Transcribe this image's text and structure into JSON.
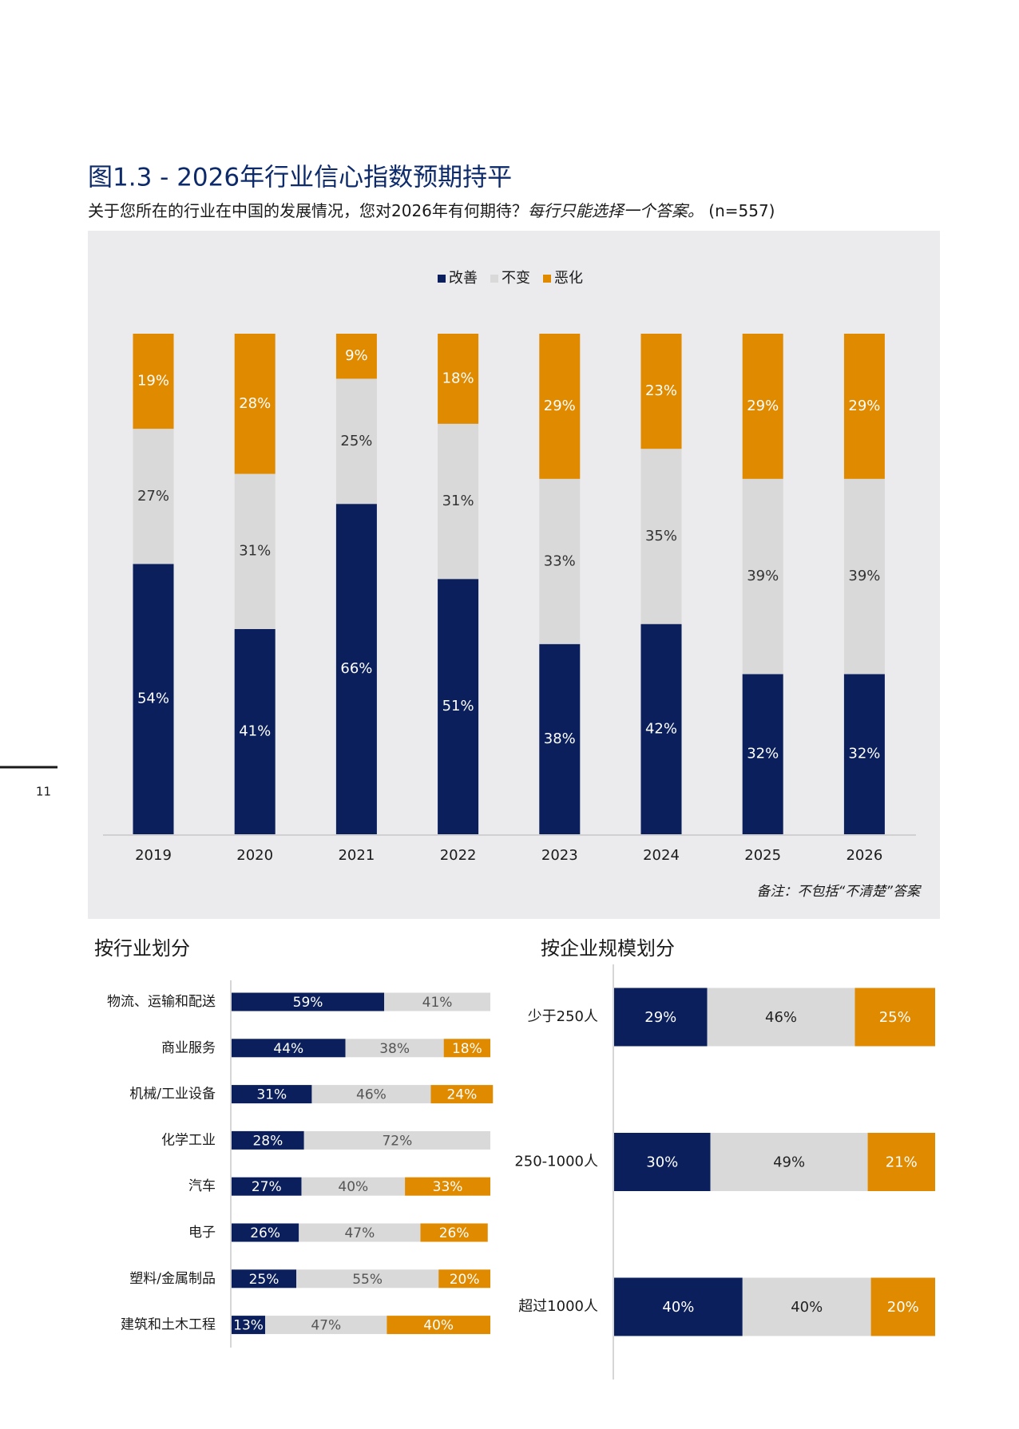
{
  "page_number": "11",
  "chart_data": [
    {
      "type": "bar",
      "title": "图1.3 - 2026年行业信心指数预期持平",
      "subtitle": "关于您所在的行业在中国的发展情况，您对2026年有何期待？",
      "subtitle_italic": "每行只能选择一个答案。",
      "subtitle_n": " (n=557)",
      "note": "备注：不包括“不清楚”答案",
      "legend": "top",
      "categories": [
        "2019",
        "2020",
        "2021",
        "2022",
        "2023",
        "2024",
        "2025",
        "2026"
      ],
      "series": [
        {
          "name": "改善",
          "color": "#0a1f5c",
          "values": [
            54,
            41,
            66,
            51,
            38,
            42,
            32,
            32
          ],
          "value_labels": [
            "54%",
            "41%",
            "66%",
            "51%",
            "38%",
            "42%",
            "32%",
            "32%"
          ]
        },
        {
          "name": "不变",
          "color": "#d9d9d9",
          "values": [
            27,
            31,
            25,
            31,
            33,
            35,
            39,
            39
          ],
          "value_labels": [
            "27%",
            "31%",
            "25%",
            "31%",
            "33%",
            "35%",
            "39%",
            "39%"
          ]
        },
        {
          "name": "恶化",
          "color": "#e08a00",
          "values": [
            19,
            28,
            9,
            18,
            29,
            23,
            29,
            29
          ],
          "value_labels": [
            "19%",
            "28%",
            "9%",
            "18%",
            "29%",
            "23%",
            "29%",
            "29%"
          ]
        }
      ]
    },
    {
      "type": "barh",
      "title": "按行业划分",
      "categories": [
        "物流、运输和配送",
        "商业服务",
        "机械/工业设备",
        "化学工业",
        "汽车",
        "电子",
        "塑料/金属制品",
        "建筑和土木工程"
      ],
      "series": [
        {
          "color": "#0a1f5c",
          "values": [
            59,
            44,
            31,
            28,
            27,
            26,
            25,
            13
          ],
          "value_labels": [
            "59%",
            "44%",
            "31%",
            "28%",
            "27%",
            "26%",
            "25%",
            "13%"
          ]
        },
        {
          "color": "#d9d9d9",
          "values": [
            41,
            38,
            46,
            72,
            40,
            47,
            55,
            47
          ],
          "value_labels": [
            "41%",
            "38%",
            "46%",
            "72%",
            "40%",
            "47%",
            "55%",
            "47%"
          ]
        },
        {
          "color": "#e08a00",
          "values": [
            null,
            18,
            24,
            null,
            33,
            26,
            20,
            40
          ],
          "value_labels": [
            null,
            "18%",
            "24%",
            null,
            "33%",
            "26%",
            "20%",
            "40%"
          ]
        }
      ]
    },
    {
      "type": "barh",
      "title": "按企业规模划分",
      "categories": [
        "少于250人",
        "250-1000人",
        "超过1000人"
      ],
      "series": [
        {
          "color": "#0a1f5c",
          "values": [
            29,
            30,
            40
          ],
          "value_labels": [
            "29%",
            "30%",
            "40%"
          ]
        },
        {
          "color": "#d9d9d9",
          "values": [
            46,
            49,
            40
          ],
          "value_labels": [
            "46%",
            "49%",
            "40%"
          ]
        },
        {
          "color": "#e08a00",
          "values": [
            25,
            21,
            20
          ],
          "value_labels": [
            "25%",
            "21%",
            "20%"
          ]
        }
      ]
    }
  ]
}
